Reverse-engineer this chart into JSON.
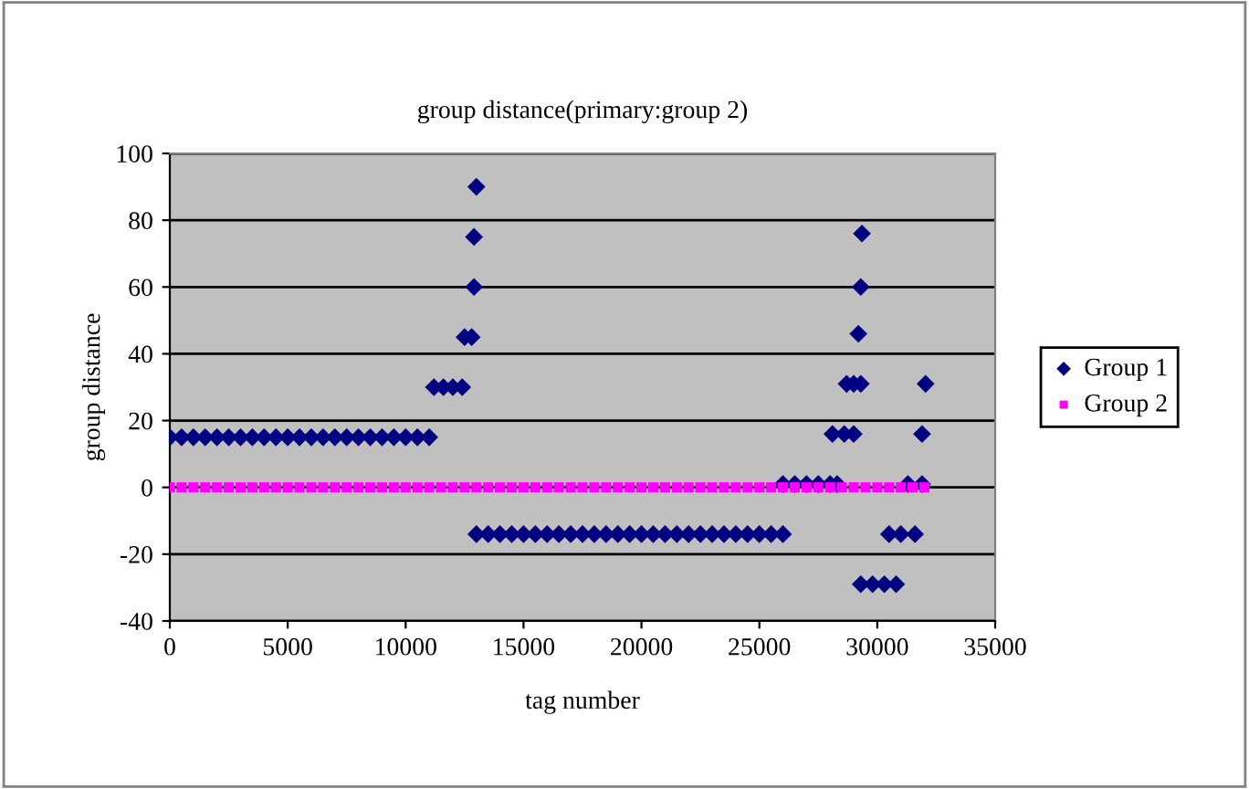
{
  "chart_data": {
    "type": "scatter",
    "title": "group distance(primary:group 2)",
    "xlabel": "tag number",
    "ylabel": "group distance",
    "xlim": [
      0,
      35000
    ],
    "xticks": [
      0,
      5000,
      10000,
      15000,
      20000,
      25000,
      30000,
      35000
    ],
    "ylim": [
      -40,
      100
    ],
    "yticks": [
      -40,
      -20,
      0,
      20,
      40,
      60,
      80,
      100
    ],
    "grid": "y",
    "legend": "right",
    "marker": "diamond",
    "series": [
      {
        "name": "Group 1",
        "color": "#000080",
        "x": [
          0,
          500,
          1000,
          1500,
          2000,
          2500,
          3000,
          3500,
          4000,
          4500,
          5000,
          5500,
          6000,
          6500,
          7000,
          7500,
          8000,
          8500,
          9000,
          9500,
          10000,
          10500,
          11000,
          11200,
          11600,
          12000,
          12400,
          12500,
          12800,
          12900,
          12900,
          13000,
          13000,
          13500,
          14000,
          14500,
          15000,
          15500,
          16000,
          16500,
          17000,
          17500,
          18000,
          18500,
          19000,
          19500,
          20000,
          20500,
          21000,
          21500,
          22000,
          22500,
          23000,
          23500,
          24000,
          24500,
          25000,
          25500,
          26000,
          26000,
          26500,
          27000,
          27500,
          28000,
          28300,
          28100,
          28600,
          29000,
          28700,
          29000,
          29300,
          29200,
          29300,
          29350,
          29300,
          29800,
          30300,
          30800,
          30500,
          31000,
          31600,
          31300,
          31900,
          31900,
          32050
        ],
        "values": [
          15,
          15,
          15,
          15,
          15,
          15,
          15,
          15,
          15,
          15,
          15,
          15,
          15,
          15,
          15,
          15,
          15,
          15,
          15,
          15,
          15,
          15,
          15,
          30,
          30,
          30,
          30,
          45,
          45,
          60,
          75,
          90,
          -14,
          -14,
          -14,
          -14,
          -14,
          -14,
          -14,
          -14,
          -14,
          -14,
          -14,
          -14,
          -14,
          -14,
          -14,
          -14,
          -14,
          -14,
          -14,
          -14,
          -14,
          -14,
          -14,
          -14,
          -14,
          -14,
          -14,
          1,
          1,
          1,
          1,
          1,
          1,
          16,
          16,
          16,
          31,
          31,
          31,
          46,
          60,
          76,
          -29,
          -29,
          -29,
          -29,
          -14,
          -14,
          -14,
          1,
          1,
          16,
          31
        ]
      },
      {
        "name": "Group 2",
        "color": "#ff00ff",
        "marker": "square",
        "x": [
          0,
          500,
          1000,
          1500,
          2000,
          2500,
          3000,
          3500,
          4000,
          4500,
          5000,
          5500,
          6000,
          6500,
          7000,
          7500,
          8000,
          8500,
          9000,
          9500,
          10000,
          10500,
          11000,
          11500,
          12000,
          12500,
          13000,
          13500,
          14000,
          14500,
          15000,
          15500,
          16000,
          16500,
          17000,
          17500,
          18000,
          18500,
          19000,
          19500,
          20000,
          20500,
          21000,
          21500,
          22000,
          22500,
          23000,
          23500,
          24000,
          24500,
          25000,
          25500,
          26000,
          26500,
          27000,
          27500,
          28000,
          28500,
          29000,
          29500,
          30000,
          30500,
          31000,
          31500,
          32000
        ],
        "values": [
          0,
          0,
          0,
          0,
          0,
          0,
          0,
          0,
          0,
          0,
          0,
          0,
          0,
          0,
          0,
          0,
          0,
          0,
          0,
          0,
          0,
          0,
          0,
          0,
          0,
          0,
          0,
          0,
          0,
          0,
          0,
          0,
          0,
          0,
          0,
          0,
          0,
          0,
          0,
          0,
          0,
          0,
          0,
          0,
          0,
          0,
          0,
          0,
          0,
          0,
          0,
          0,
          0,
          0,
          0,
          0,
          0,
          0,
          0,
          0,
          0,
          0,
          0,
          0,
          0
        ]
      }
    ]
  }
}
